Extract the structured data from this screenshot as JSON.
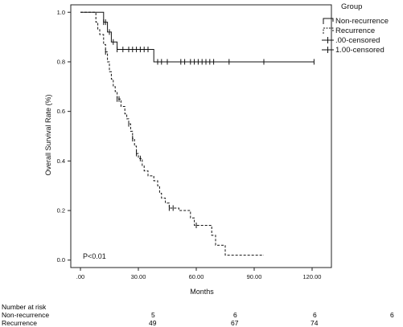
{
  "chart_data": {
    "type": "line",
    "title": "",
    "xlabel": "Months",
    "ylabel": "Overall Survival Rate (%)",
    "xlim": [
      -5,
      130
    ],
    "ylim": [
      -0.03,
      1.03
    ],
    "x_ticks": [
      0,
      30,
      60,
      90,
      120
    ],
    "x_tick_labels": [
      ".00",
      "30.00",
      "60.00",
      "90.00",
      "120.00"
    ],
    "y_ticks": [
      0,
      0.2,
      0.4,
      0.6,
      0.8,
      1.0
    ],
    "y_tick_labels": [
      "0.0",
      "0.2",
      "0.4",
      "0.6",
      "0.8",
      "1.0"
    ],
    "annotation": "P<0.01",
    "legend": {
      "title": "Group",
      "placement": "right",
      "entries": [
        "Non-recurrence",
        "Recurrence",
        ".00-censored",
        "1.00-censored"
      ]
    },
    "series": [
      {
        "name": "Non-recurrence",
        "style": "solid",
        "steps": [
          [
            0,
            1.0
          ],
          [
            12,
            0.96
          ],
          [
            14,
            0.92
          ],
          [
            16,
            0.88
          ],
          [
            19,
            0.85
          ],
          [
            38,
            0.8
          ],
          [
            121,
            0.8
          ]
        ],
        "censored": [
          12,
          13,
          15,
          17,
          19,
          22,
          25,
          27,
          29,
          31,
          33,
          35,
          40,
          42,
          45,
          52,
          54,
          57,
          59,
          61,
          63,
          65,
          67,
          69,
          77,
          95,
          121
        ]
      },
      {
        "name": "Recurrence",
        "style": "dashed",
        "steps": [
          [
            0,
            1.0
          ],
          [
            8,
            0.96
          ],
          [
            9,
            0.93
          ],
          [
            10,
            0.91
          ],
          [
            12,
            0.87
          ],
          [
            13,
            0.84
          ],
          [
            14,
            0.8
          ],
          [
            15,
            0.76
          ],
          [
            16,
            0.73
          ],
          [
            17,
            0.7
          ],
          [
            18,
            0.68
          ],
          [
            19,
            0.65
          ],
          [
            21,
            0.62
          ],
          [
            23,
            0.59
          ],
          [
            24,
            0.57
          ],
          [
            25,
            0.55
          ],
          [
            26,
            0.52
          ],
          [
            27,
            0.49
          ],
          [
            28,
            0.46
          ],
          [
            29,
            0.43
          ],
          [
            30,
            0.41
          ],
          [
            32,
            0.38
          ],
          [
            33,
            0.36
          ],
          [
            35,
            0.34
          ],
          [
            38,
            0.32
          ],
          [
            40,
            0.3
          ],
          [
            41,
            0.27
          ],
          [
            42,
            0.25
          ],
          [
            44,
            0.23
          ],
          [
            46,
            0.21
          ],
          [
            51,
            0.2
          ],
          [
            57,
            0.17
          ],
          [
            59,
            0.14
          ],
          [
            68,
            0.1
          ],
          [
            70,
            0.06
          ],
          [
            75,
            0.02
          ],
          [
            95,
            0.02
          ]
        ],
        "censored": [
          13,
          19,
          20,
          25,
          27,
          29,
          31,
          46,
          48,
          60
        ]
      }
    ]
  },
  "risk_table": {
    "header": "Number at risk",
    "rows": [
      {
        "label": "Non-recurrence",
        "values": [
          "5",
          "6",
          "6",
          "6"
        ]
      },
      {
        "label": "Recurrence",
        "values": [
          "49",
          "67",
          "74"
        ]
      }
    ]
  }
}
